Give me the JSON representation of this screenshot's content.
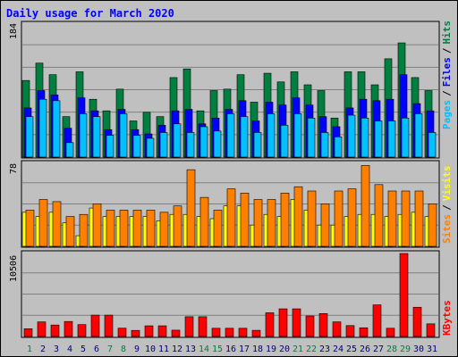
{
  "title": "Daily usage for March 2020",
  "colors": {
    "hits": "#008040",
    "files": "#0000ff",
    "pages": "#00c0ff",
    "visits": "#ffff00",
    "sites": "#ff8000",
    "kbytes": "#ff0000",
    "weekend": "#008040",
    "weekday": "#000080"
  },
  "panels": {
    "top": {
      "max_label": "184",
      "side_labels": [
        "Pages",
        "Files",
        "Hits"
      ],
      "side_seps": [
        "/",
        "/"
      ]
    },
    "mid": {
      "max_label": "78",
      "side_labels": [
        "Sites",
        "Visits"
      ],
      "side_seps": [
        "/"
      ]
    },
    "bot": {
      "max_label": "10506",
      "side_labels": [
        "KBytes"
      ],
      "side_seps": []
    }
  },
  "chart_data": {
    "type": "bar",
    "title": "Daily usage for March 2020",
    "categories": [
      "1",
      "2",
      "3",
      "4",
      "5",
      "6",
      "7",
      "8",
      "9",
      "10",
      "11",
      "12",
      "13",
      "14",
      "15",
      "16",
      "17",
      "18",
      "19",
      "20",
      "21",
      "22",
      "23",
      "24",
      "25",
      "26",
      "27",
      "28",
      "29",
      "30",
      "31"
    ],
    "weekend_days": [
      "1",
      "7",
      "8",
      "14",
      "15",
      "21",
      "22",
      "28",
      "29"
    ],
    "panels": [
      {
        "max": 184,
        "series": [
          {
            "name": "Hits",
            "values": [
              106,
              130,
              114,
              56,
              118,
              80,
              64,
              94,
              50,
              62,
              56,
              110,
              122,
              64,
              92,
              94,
              114,
              76,
              116,
              104,
              118,
              100,
              92,
              54,
              118,
              118,
              100,
              136,
              158,
              110,
              92
            ]
          },
          {
            "name": "Files",
            "values": [
              68,
              92,
              86,
              40,
              82,
              64,
              38,
              66,
              38,
              32,
              44,
              64,
              66,
              46,
              54,
              66,
              78,
              50,
              76,
              72,
              82,
              72,
              56,
              42,
              68,
              80,
              78,
              80,
              114,
              74,
              64
            ]
          },
          {
            "name": "Pages",
            "values": [
              56,
              80,
              78,
              20,
              60,
              56,
              30,
              60,
              30,
              26,
              34,
              46,
              34,
              42,
              36,
              60,
              56,
              34,
              60,
              44,
              60,
              54,
              34,
              28,
              58,
              54,
              50,
              50,
              54,
              60,
              34
            ]
          }
        ]
      },
      {
        "max": 78,
        "series": [
          {
            "name": "Visits",
            "values": [
              32,
              28,
              32,
              22,
              10,
              36,
              28,
              28,
              28,
              28,
              24,
              30,
              30,
              28,
              26,
              38,
              38,
              20,
              30,
              28,
              44,
              34,
              20,
              20,
              28,
              30,
              30,
              28,
              30,
              32,
              28
            ]
          },
          {
            "name": "Sites",
            "values": [
              34,
              44,
              42,
              28,
              30,
              40,
              34,
              34,
              34,
              34,
              32,
              38,
              72,
              46,
              34,
              54,
              50,
              44,
              44,
              50,
              56,
              52,
              40,
              52,
              54,
              76,
              58,
              52,
              52,
              52,
              40
            ]
          }
        ]
      },
      {
        "max": 10506,
        "series": [
          {
            "name": "KBytes",
            "values": [
              980,
              1850,
              1450,
              1900,
              1500,
              2700,
              2700,
              1050,
              770,
              1350,
              1350,
              800,
              2500,
              2500,
              1040,
              1040,
              1040,
              780,
              3000,
              3500,
              3500,
              2600,
              2900,
              1850,
              1380,
              1100,
              4000,
              1040,
              10506,
              3700,
              1600
            ]
          }
        ]
      }
    ]
  }
}
